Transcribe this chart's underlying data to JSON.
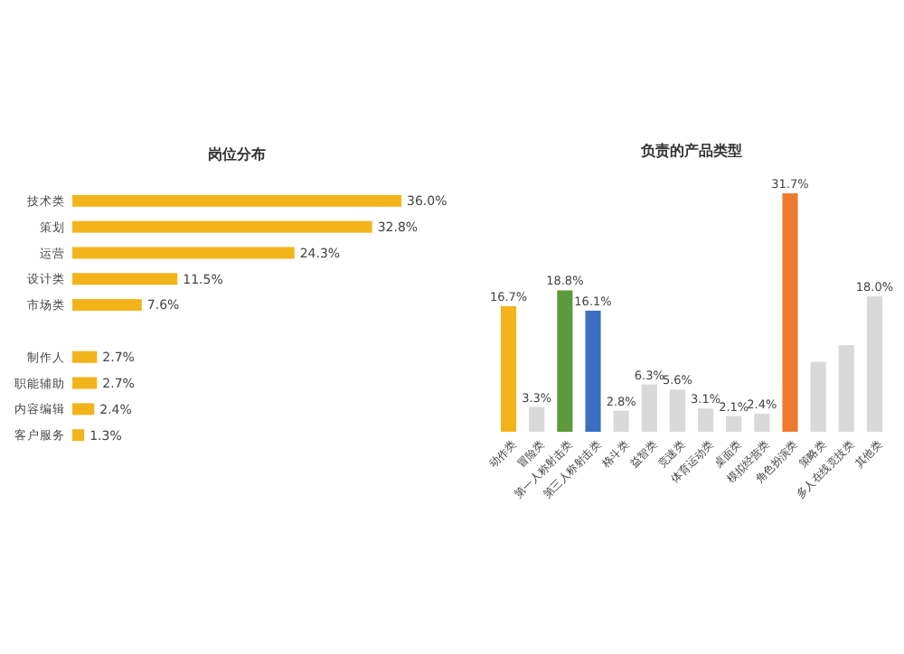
{
  "chart_data": [
    {
      "type": "bar",
      "orientation": "horizontal",
      "title": "岗位分布",
      "categories": [
        "技术类",
        "策划",
        "运营",
        "设计类",
        "市场类",
        null,
        "制作人",
        "职能辅助",
        "内容编辑",
        "客户服务"
      ],
      "values": [
        36.0,
        32.8,
        24.3,
        11.5,
        7.6,
        null,
        2.7,
        2.7,
        2.4,
        1.3
      ],
      "color": "#f3b41b",
      "value_labels": [
        "36.0%",
        "32.8%",
        "24.3%",
        "11.5%",
        "7.6%",
        null,
        "2.7%",
        "2.7%",
        "2.4%",
        "1.3%"
      ]
    },
    {
      "type": "bar",
      "title": "负责的产品类型",
      "categories": [
        "动作类",
        "冒险类",
        "第一人称射击类",
        "第三人称射击类",
        "格斗类",
        "益智类",
        "竞速类",
        "体育运动类",
        "桌面类",
        "模拟经营类",
        "角色扮演类",
        "策略类",
        "多人在线竞技类",
        "其他类"
      ],
      "values": [
        16.7,
        3.3,
        18.8,
        16.1,
        2.8,
        6.3,
        5.6,
        3.1,
        2.1,
        2.4,
        31.7,
        9.3,
        11.5,
        18.0
      ],
      "colors": [
        "#f3b41b",
        "#d9d9d9",
        "#5b9b3c",
        "#3b6fc2",
        "#d9d9d9",
        "#d9d9d9",
        "#d9d9d9",
        "#d9d9d9",
        "#d9d9d9",
        "#d9d9d9",
        "#ee7a30",
        "#d9d9d9",
        "#d9d9d9",
        "#d9d9d9"
      ],
      "value_labels": [
        "16.7%",
        "3.3%",
        "18.8%",
        "16.1%",
        "2.8%",
        "6.3%",
        "5.6%",
        "3.1%",
        "2.1%",
        "2.4%",
        "31.7%",
        null,
        null,
        "18.0%"
      ]
    }
  ]
}
